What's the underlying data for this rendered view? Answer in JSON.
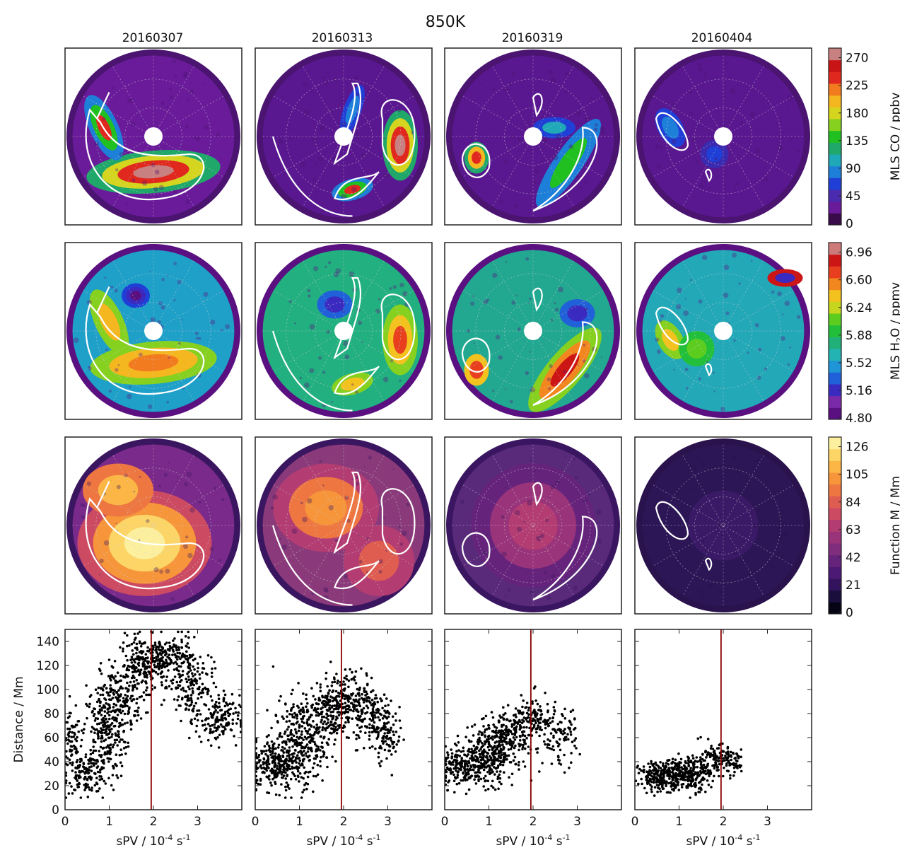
{
  "figure": {
    "title": "850K",
    "dates": [
      "20160307",
      "20160313",
      "20160319",
      "20160404"
    ]
  },
  "colorbars": [
    {
      "label_main": "MLS CO / ppbv",
      "ticks": [
        "0",
        "45",
        "90",
        "135",
        "180",
        "225",
        "270"
      ],
      "colors": [
        "#3b0a4a",
        "#6a1b9a",
        "#4a2bb0",
        "#1f3fd6",
        "#1e7fd8",
        "#1fa8b8",
        "#1fa86a",
        "#21c021",
        "#86d11f",
        "#d5d51f",
        "#f5b71f",
        "#f27a1f",
        "#e0281f",
        "#c81414",
        "#c98080"
      ]
    },
    {
      "label_main": "MLS H",
      "label_sub": "2",
      "label_rest": "O / ppmv",
      "ticks": [
        "4.80",
        "5.16",
        "5.52",
        "5.88",
        "6.24",
        "6.60",
        "6.96"
      ],
      "colors": [
        "#5a1080",
        "#7a2aa8",
        "#3a2ac0",
        "#2060d8",
        "#1f94d6",
        "#23b3b3",
        "#21b07a",
        "#22c03a",
        "#5ccd1f",
        "#c6d61f",
        "#f3c21f",
        "#f3871f",
        "#e8401f",
        "#cc1515",
        "#cc7a7a"
      ]
    },
    {
      "label_main": "Function M / Mm",
      "ticks": [
        "0",
        "21",
        "42",
        "63",
        "84",
        "105",
        "126"
      ],
      "colors": [
        "#050414",
        "#1a0f3c",
        "#33135e",
        "#4c1a74",
        "#66237c",
        "#802d7e",
        "#9a347a",
        "#b33d72",
        "#cc4a62",
        "#df5d50",
        "#ee7640",
        "#f6953a",
        "#fbb646",
        "#fcd566",
        "#fcf09e"
      ]
    }
  ],
  "chart_data": [
    {
      "type": "scatter",
      "panel": "20160307",
      "xlabel": "sPV / 10",
      "xlabel_sup": "-4",
      "xlabel_unit": " s",
      "xlabel_unit_sup": "-1",
      "ylabel": "Distance / Mm",
      "xlim": [
        0,
        4
      ],
      "ylim": [
        0,
        150
      ],
      "xticks": [
        "0",
        "1",
        "2",
        "3"
      ],
      "yticks": [
        "0",
        "20",
        "40",
        "60",
        "80",
        "100",
        "120",
        "140"
      ],
      "vline_x": 1.95,
      "clusters": [
        {
          "x": 0.15,
          "y": 55,
          "sx": 0.1,
          "sy": 12,
          "n": 60
        },
        {
          "x": 0.5,
          "y": 30,
          "sx": 0.25,
          "sy": 8,
          "n": 140
        },
        {
          "x": 0.9,
          "y": 65,
          "sx": 0.25,
          "sy": 20,
          "n": 260
        },
        {
          "x": 1.3,
          "y": 95,
          "sx": 0.25,
          "sy": 15,
          "n": 140
        },
        {
          "x": 1.75,
          "y": 120,
          "sx": 0.25,
          "sy": 12,
          "n": 170
        },
        {
          "x": 2.3,
          "y": 125,
          "sx": 0.3,
          "sy": 10,
          "n": 190
        },
        {
          "x": 2.85,
          "y": 105,
          "sx": 0.25,
          "sy": 15,
          "n": 150
        },
        {
          "x": 3.45,
          "y": 75,
          "sx": 0.25,
          "sy": 10,
          "n": 150
        }
      ]
    },
    {
      "type": "scatter",
      "panel": "20160313",
      "xlabel": "sPV / 10",
      "xlabel_sup": "-4",
      "xlabel_unit": " s",
      "xlabel_unit_sup": "-1",
      "xlim": [
        0,
        4
      ],
      "ylim": [
        0,
        150
      ],
      "xticks": [
        "0",
        "1",
        "2",
        "3"
      ],
      "vline_x": 1.95,
      "clusters": [
        {
          "x": 0.4,
          "y": 38,
          "sx": 0.25,
          "sy": 10,
          "n": 200
        },
        {
          "x": 1.0,
          "y": 55,
          "sx": 0.3,
          "sy": 18,
          "n": 320
        },
        {
          "x": 1.6,
          "y": 80,
          "sx": 0.3,
          "sy": 12,
          "n": 200
        },
        {
          "x": 2.2,
          "y": 95,
          "sx": 0.3,
          "sy": 10,
          "n": 170
        },
        {
          "x": 2.65,
          "y": 75,
          "sx": 0.25,
          "sy": 12,
          "n": 130
        },
        {
          "x": 3.0,
          "y": 60,
          "sx": 0.15,
          "sy": 10,
          "n": 60
        }
      ]
    },
    {
      "type": "scatter",
      "panel": "20160319",
      "xlabel": "sPV / 10",
      "xlabel_sup": "-4",
      "xlabel_unit": " s",
      "xlabel_unit_sup": "-1",
      "xlim": [
        0,
        4
      ],
      "ylim": [
        0,
        150
      ],
      "xticks": [
        "0",
        "1",
        "2",
        "3"
      ],
      "vline_x": 1.95,
      "clusters": [
        {
          "x": 0.4,
          "y": 35,
          "sx": 0.25,
          "sy": 8,
          "n": 180
        },
        {
          "x": 1.0,
          "y": 45,
          "sx": 0.3,
          "sy": 12,
          "n": 300
        },
        {
          "x": 1.5,
          "y": 62,
          "sx": 0.25,
          "sy": 10,
          "n": 160
        },
        {
          "x": 2.0,
          "y": 75,
          "sx": 0.25,
          "sy": 10,
          "n": 120
        },
        {
          "x": 2.6,
          "y": 60,
          "sx": 0.2,
          "sy": 12,
          "n": 90
        }
      ]
    },
    {
      "type": "scatter",
      "panel": "20160404",
      "xlabel": "sPV / 10",
      "xlabel_sup": "-4",
      "xlabel_unit": " s",
      "xlabel_unit_sup": "-1",
      "xlim": [
        0,
        4
      ],
      "ylim": [
        0,
        150
      ],
      "xticks": [
        "0",
        "1",
        "2",
        "3"
      ],
      "vline_x": 1.95,
      "clusters": [
        {
          "x": 0.6,
          "y": 28,
          "sx": 0.25,
          "sy": 6,
          "n": 220
        },
        {
          "x": 1.2,
          "y": 30,
          "sx": 0.25,
          "sy": 7,
          "n": 240
        },
        {
          "x": 1.8,
          "y": 42,
          "sx": 0.25,
          "sy": 6,
          "n": 130
        },
        {
          "x": 2.2,
          "y": 38,
          "sx": 0.1,
          "sy": 5,
          "n": 40
        }
      ]
    }
  ]
}
